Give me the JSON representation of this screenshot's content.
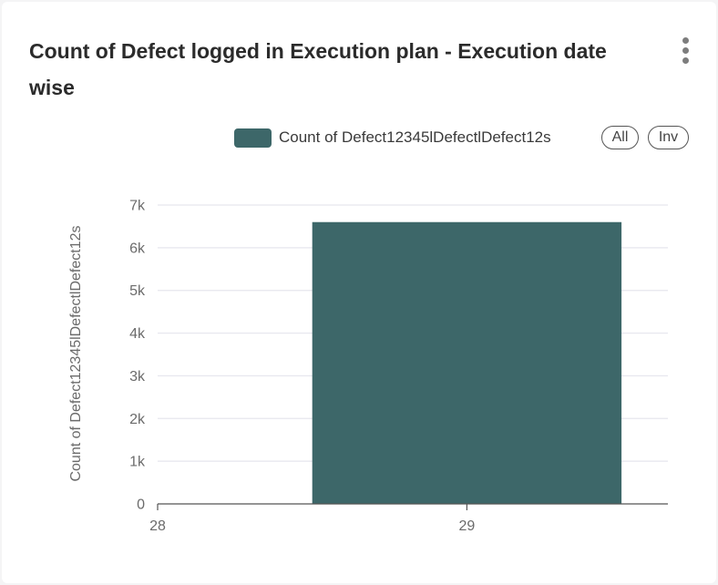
{
  "header": {
    "title": "Count of Defect logged in Execution plan - Execution date wise",
    "menu_icon": "more-vertical-icon"
  },
  "legend": {
    "item_label": "Count of Defect12345lDefectlDefect12s",
    "select_all_label": "All",
    "invert_label": "Inv"
  },
  "colors": {
    "bar": "#3d6769",
    "grid": "#e6e6ee",
    "axis": "#555555",
    "text": "#6b6b6b"
  },
  "chart_data": {
    "type": "bar",
    "title": "Count of Defect logged in Execution plan - Execution date wise",
    "xlabel": "",
    "ylabel": "Count of Defect12345lDefectlDefect12s",
    "x_ticks": [
      "28",
      "29"
    ],
    "y_ticks": [
      "0",
      "1k",
      "2k",
      "3k",
      "4k",
      "5k",
      "6k",
      "7k"
    ],
    "ylim": [
      0,
      7000
    ],
    "xlim": [
      28,
      29.65
    ],
    "grid": true,
    "legend_position": "top-right",
    "series": [
      {
        "name": "Count of Defect12345lDefectlDefect12s",
        "points": [
          {
            "x_start": 28.5,
            "x_end": 29.5,
            "y": 6600
          }
        ]
      }
    ]
  }
}
